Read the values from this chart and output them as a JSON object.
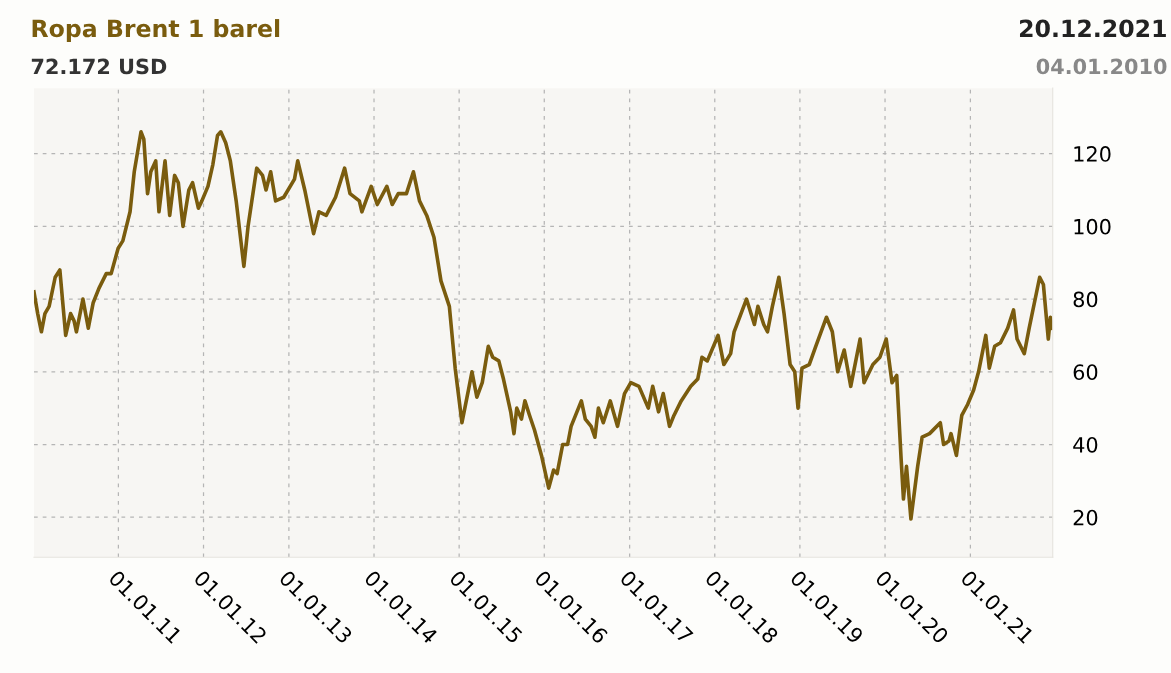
{
  "chart_data": {
    "type": "line",
    "title": "Ropa Brent 1 barel",
    "subtitle": "72.172 USD",
    "annotations": [
      "20.12.2021",
      "04.01.2010"
    ],
    "xlim": [
      "2010-01-04",
      "2021-12-20"
    ],
    "xticks": [
      {
        "value": "2011-01-01",
        "label": "01.01.11"
      },
      {
        "value": "2012-01-01",
        "label": "01.01.12"
      },
      {
        "value": "2013-01-01",
        "label": "01.01.13"
      },
      {
        "value": "2014-01-01",
        "label": "01.01.14"
      },
      {
        "value": "2015-01-01",
        "label": "01.01.15"
      },
      {
        "value": "2016-01-01",
        "label": "01.01.16"
      },
      {
        "value": "2017-01-01",
        "label": "01.01.17"
      },
      {
        "value": "2018-01-01",
        "label": "01.01.18"
      },
      {
        "value": "2019-01-01",
        "label": "01.01.19"
      },
      {
        "value": "2020-01-01",
        "label": "01.01.20"
      },
      {
        "value": "2021-01-01",
        "label": "01.01.21"
      }
    ],
    "ylim": [
      9,
      138
    ],
    "yticks": [
      20,
      40,
      60,
      80,
      100,
      120
    ],
    "grid": true,
    "line_style": "solid",
    "marker": "none",
    "series": [
      {
        "color": "#7a5c0e",
        "x": [
          "2010-01-04",
          "2010-01-20",
          "2010-02-05",
          "2010-02-20",
          "2010-03-10",
          "2010-04-05",
          "2010-04-25",
          "2010-05-20",
          "2010-06-10",
          "2010-06-25",
          "2010-07-05",
          "2010-08-02",
          "2010-08-25",
          "2010-09-15",
          "2010-10-10",
          "2010-11-10",
          "2010-12-01",
          "2010-12-31",
          "2011-01-20",
          "2011-02-20",
          "2011-03-10",
          "2011-04-08",
          "2011-04-20",
          "2011-05-06",
          "2011-05-20",
          "2011-06-10",
          "2011-06-24",
          "2011-07-20",
          "2011-08-09",
          "2011-08-30",
          "2011-09-15",
          "2011-10-05",
          "2011-10-30",
          "2011-11-15",
          "2011-12-10",
          "2011-12-25",
          "2012-01-20",
          "2012-02-10",
          "2012-03-01",
          "2012-03-15",
          "2012-04-05",
          "2012-04-25",
          "2012-05-20",
          "2012-06-22",
          "2012-07-10",
          "2012-08-16",
          "2012-09-10",
          "2012-09-25",
          "2012-10-15",
          "2012-11-05",
          "2012-12-10",
          "2013-01-25",
          "2013-02-08",
          "2013-03-10",
          "2013-04-17",
          "2013-05-10",
          "2013-06-10",
          "2013-07-20",
          "2013-08-28",
          "2013-09-20",
          "2013-10-30",
          "2013-11-10",
          "2013-12-20",
          "2014-01-15",
          "2014-02-25",
          "2014-03-20",
          "2014-04-15",
          "2014-05-20",
          "2014-06-19",
          "2014-07-15",
          "2014-08-15",
          "2014-09-15",
          "2014-10-15",
          "2014-11-20",
          "2014-12-15",
          "2015-01-13",
          "2015-02-10",
          "2015-02-25",
          "2015-03-18",
          "2015-04-10",
          "2015-05-06",
          "2015-05-25",
          "2015-06-20",
          "2015-07-10",
          "2015-08-10",
          "2015-08-24",
          "2015-09-05",
          "2015-09-25",
          "2015-10-10",
          "2015-10-30",
          "2015-11-20",
          "2015-12-20",
          "2016-01-20",
          "2016-02-10",
          "2016-02-25",
          "2016-03-20",
          "2016-04-10",
          "2016-04-25",
          "2016-06-08",
          "2016-06-25",
          "2016-07-20",
          "2016-08-05",
          "2016-08-20",
          "2016-09-10",
          "2016-10-10",
          "2016-11-10",
          "2016-12-10",
          "2017-01-06",
          "2017-02-10",
          "2017-03-22",
          "2017-04-10",
          "2017-05-05",
          "2017-05-25",
          "2017-06-21",
          "2017-07-10",
          "2017-08-10",
          "2017-09-20",
          "2017-10-20",
          "2017-11-07",
          "2017-11-30",
          "2018-01-15",
          "2018-02-09",
          "2018-03-10",
          "2018-03-25",
          "2018-05-17",
          "2018-06-20",
          "2018-07-05",
          "2018-07-30",
          "2018-08-15",
          "2018-09-05",
          "2018-10-03",
          "2018-10-25",
          "2018-11-20",
          "2018-12-10",
          "2018-12-24",
          "2019-01-10",
          "2019-02-10",
          "2019-03-10",
          "2019-04-25",
          "2019-05-20",
          "2019-06-12",
          "2019-07-10",
          "2019-08-07",
          "2019-09-16",
          "2019-10-03",
          "2019-11-10",
          "2019-12-10",
          "2020-01-06",
          "2020-01-31",
          "2020-02-20",
          "2020-03-10",
          "2020-03-20",
          "2020-04-02",
          "2020-04-21",
          "2020-05-20",
          "2020-06-08",
          "2020-07-10",
          "2020-08-25",
          "2020-09-08",
          "2020-10-01",
          "2020-10-10",
          "2020-11-02",
          "2020-11-25",
          "2020-12-20",
          "2021-01-15",
          "2021-02-05",
          "2021-03-08",
          "2021-03-23",
          "2021-04-15",
          "2021-05-10",
          "2021-06-10",
          "2021-07-05",
          "2021-07-20",
          "2021-08-20",
          "2021-09-10",
          "2021-10-25",
          "2021-11-10",
          "2021-12-01",
          "2021-12-10",
          "2021-12-20"
        ],
        "values": [
          82,
          76,
          71,
          76,
          78,
          86,
          88,
          70,
          76,
          74,
          71,
          80,
          72,
          79,
          83,
          87,
          87,
          94,
          96,
          104,
          115,
          126,
          124,
          109,
          115,
          118,
          104,
          118,
          103,
          114,
          112,
          100,
          110,
          112,
          105,
          107,
          111,
          117,
          125,
          126,
          123,
          118,
          107,
          89,
          100,
          116,
          114,
          110,
          115,
          107,
          108,
          113,
          118,
          110,
          98,
          104,
          103,
          108,
          116,
          109,
          107,
          104,
          111,
          106,
          111,
          106,
          109,
          109,
          115,
          107,
          103,
          97,
          85,
          78,
          61,
          46,
          55,
          60,
          53,
          57,
          67,
          64,
          63,
          58,
          49,
          43,
          50,
          47,
          52,
          48,
          44,
          37,
          28,
          33,
          32,
          40,
          40,
          45,
          52,
          47,
          45,
          42,
          50,
          46,
          52,
          45,
          54,
          57,
          56,
          50,
          56,
          49,
          54,
          45,
          48,
          52,
          56,
          58,
          64,
          63,
          70,
          62,
          65,
          71,
          80,
          73,
          78,
          73,
          71,
          78,
          86,
          76,
          62,
          60,
          50,
          61,
          62,
          67,
          75,
          71,
          60,
          66,
          56,
          69,
          57,
          62,
          64,
          69,
          57,
          59,
          36,
          25,
          34,
          19.5,
          34,
          42,
          43,
          46,
          40,
          41,
          43,
          37,
          48,
          51,
          55,
          60,
          70,
          61,
          67,
          68,
          72,
          77,
          69,
          65,
          72,
          86,
          84,
          69,
          75,
          72
        ]
      }
    ]
  }
}
